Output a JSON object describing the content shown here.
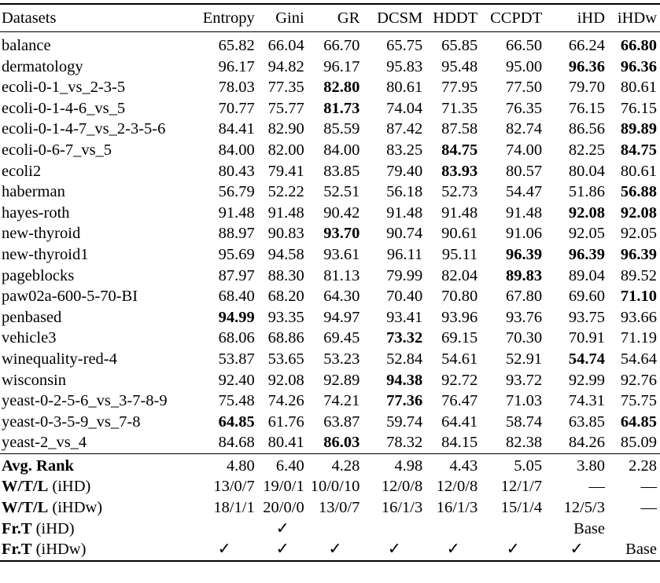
{
  "header": [
    "Datasets",
    "Entropy",
    "Gini",
    "GR",
    "DCSM",
    "HDDT",
    "CCPDT",
    "iHD",
    "iHDw"
  ],
  "rows": [
    {
      "name": "balance",
      "values": [
        "65.82",
        "66.04",
        "66.70",
        "65.75",
        "65.85",
        "66.50",
        "66.24",
        "66.80"
      ],
      "bold": [
        7
      ]
    },
    {
      "name": "dermatology",
      "values": [
        "96.17",
        "94.82",
        "96.17",
        "95.83",
        "95.48",
        "95.00",
        "96.36",
        "96.36"
      ],
      "bold": [
        6,
        7
      ]
    },
    {
      "name": "ecoli-0-1_vs_2-3-5",
      "values": [
        "78.03",
        "77.35",
        "82.80",
        "80.61",
        "77.95",
        "77.50",
        "79.70",
        "80.61"
      ],
      "bold": [
        2
      ]
    },
    {
      "name": "ecoli-0-1-4-6_vs_5",
      "values": [
        "70.77",
        "75.77",
        "81.73",
        "74.04",
        "71.35",
        "76.35",
        "76.15",
        "76.15"
      ],
      "bold": [
        2
      ]
    },
    {
      "name": "ecoli-0-1-4-7_vs_2-3-5-6",
      "values": [
        "84.41",
        "82.90",
        "85.59",
        "87.42",
        "87.58",
        "82.74",
        "86.56",
        "89.89"
      ],
      "bold": [
        7
      ]
    },
    {
      "name": "ecoli-0-6-7_vs_5",
      "values": [
        "84.00",
        "82.00",
        "84.00",
        "83.25",
        "84.75",
        "74.00",
        "82.25",
        "84.75"
      ],
      "bold": [
        4,
        7
      ]
    },
    {
      "name": "ecoli2",
      "values": [
        "80.43",
        "79.41",
        "83.85",
        "79.40",
        "83.93",
        "80.57",
        "80.04",
        "80.61"
      ],
      "bold": [
        4
      ]
    },
    {
      "name": "haberman",
      "values": [
        "56.79",
        "52.22",
        "52.51",
        "56.18",
        "52.73",
        "54.47",
        "51.86",
        "56.88"
      ],
      "bold": [
        7
      ]
    },
    {
      "name": "hayes-roth",
      "values": [
        "91.48",
        "91.48",
        "90.42",
        "91.48",
        "91.48",
        "91.48",
        "92.08",
        "92.08"
      ],
      "bold": [
        6,
        7
      ]
    },
    {
      "name": "new-thyroid",
      "values": [
        "88.97",
        "90.83",
        "93.70",
        "90.74",
        "90.61",
        "91.06",
        "92.05",
        "92.05"
      ],
      "bold": [
        2
      ]
    },
    {
      "name": "new-thyroid1",
      "values": [
        "95.69",
        "94.58",
        "93.61",
        "96.11",
        "95.11",
        "96.39",
        "96.39",
        "96.39"
      ],
      "bold": [
        5,
        6,
        7
      ]
    },
    {
      "name": "pageblocks",
      "values": [
        "87.97",
        "88.30",
        "81.13",
        "79.99",
        "82.04",
        "89.83",
        "89.04",
        "89.52"
      ],
      "bold": [
        5
      ]
    },
    {
      "name": "paw02a-600-5-70-BI",
      "values": [
        "68.40",
        "68.20",
        "64.30",
        "70.40",
        "70.80",
        "67.80",
        "69.60",
        "71.10"
      ],
      "bold": [
        7
      ]
    },
    {
      "name": "penbased",
      "values": [
        "94.99",
        "93.35",
        "94.97",
        "93.41",
        "93.96",
        "93.76",
        "93.75",
        "93.66"
      ],
      "bold": [
        0
      ]
    },
    {
      "name": "vehicle3",
      "values": [
        "68.06",
        "68.86",
        "69.45",
        "73.32",
        "69.15",
        "70.30",
        "70.91",
        "71.19"
      ],
      "bold": [
        3
      ]
    },
    {
      "name": "winequality-red-4",
      "values": [
        "53.87",
        "53.65",
        "53.23",
        "52.84",
        "54.61",
        "52.91",
        "54.74",
        "54.64"
      ],
      "bold": [
        6
      ]
    },
    {
      "name": "wisconsin",
      "values": [
        "92.40",
        "92.08",
        "92.89",
        "94.38",
        "92.72",
        "93.72",
        "92.99",
        "92.76"
      ],
      "bold": [
        3
      ]
    },
    {
      "name": "yeast-0-2-5-6_vs_3-7-8-9",
      "values": [
        "75.48",
        "74.26",
        "74.21",
        "77.36",
        "76.47",
        "71.03",
        "74.31",
        "75.75"
      ],
      "bold": [
        3
      ]
    },
    {
      "name": "yeast-0-3-5-9_vs_7-8",
      "values": [
        "64.85",
        "61.76",
        "63.87",
        "59.74",
        "64.41",
        "58.74",
        "63.85",
        "64.85"
      ],
      "bold": [
        0,
        7
      ]
    },
    {
      "name": "yeast-2_vs_4",
      "values": [
        "84.68",
        "80.41",
        "86.03",
        "78.32",
        "84.15",
        "82.38",
        "84.26",
        "85.09"
      ],
      "bold": [
        2
      ]
    }
  ],
  "summary": [
    {
      "label_bold": "Avg. Rank",
      "label_rest": "",
      "values": [
        "4.80",
        "6.40",
        "4.28",
        "4.98",
        "4.43",
        "5.05",
        "3.80",
        "2.28"
      ],
      "align": "num"
    },
    {
      "label_bold": "W/T/L",
      "label_rest": " (iHD)",
      "values": [
        "13/0/7",
        "19/0/1",
        "10/0/10",
        "12/0/8",
        "12/0/8",
        "12/1/7",
        "—",
        "—"
      ],
      "align": "num"
    },
    {
      "label_bold": "W/T/L",
      "label_rest": " (iHDw)",
      "values": [
        "18/1/1",
        "20/0/0",
        "13/0/7",
        "16/1/3",
        "16/1/3",
        "15/1/4",
        "12/5/3",
        "—"
      ],
      "align": "num"
    },
    {
      "label_bold": "Fr.T",
      "label_rest": " (iHD)",
      "values": [
        "",
        "✓",
        "",
        "",
        "",
        "",
        "Base",
        ""
      ],
      "align": "ctr"
    },
    {
      "label_bold": "Fr.T",
      "label_rest": " (iHDw)",
      "values": [
        "✓",
        "✓",
        "✓",
        "✓",
        "✓",
        "✓",
        "✓",
        "Base"
      ],
      "align": "ctr"
    }
  ]
}
